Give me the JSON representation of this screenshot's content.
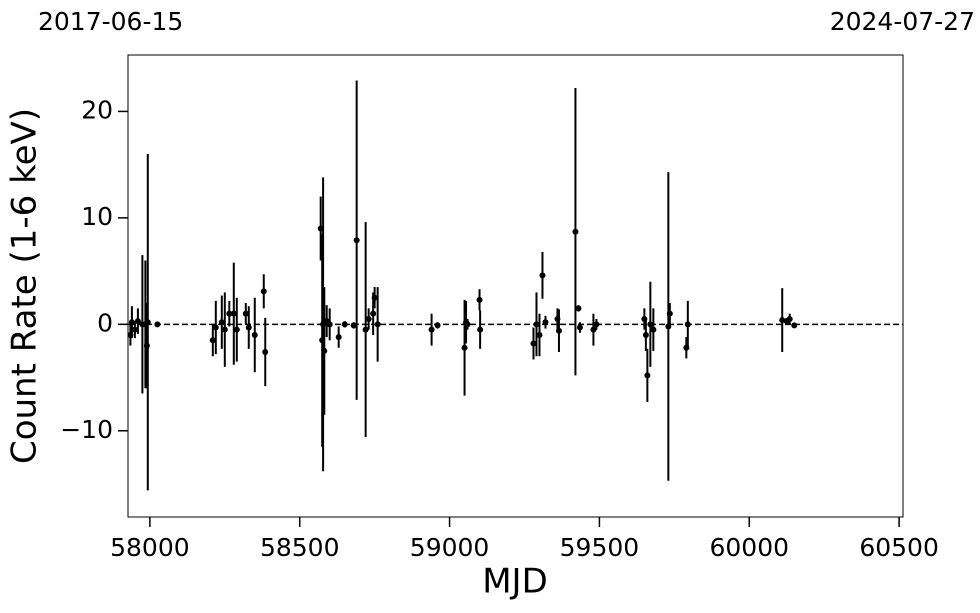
{
  "chart_data": {
    "type": "errorbar",
    "top_labels": [
      "2017-06-15",
      "2024-07-27"
    ],
    "x_label": "MJD",
    "y_label": "Count Rate (1-6 keV)",
    "xlim": [
      57927,
      60513
    ],
    "ylim": [
      -18.1,
      25.3
    ],
    "xticks": [
      58000,
      58500,
      59000,
      59500,
      60000,
      60500
    ],
    "yticks": [
      {
        "value": -10,
        "label": "−10"
      },
      0,
      10,
      20
    ],
    "hline": 0,
    "color": "#000000",
    "x": [
      57935,
      57940,
      57950,
      57960,
      57975,
      57985,
      57990,
      57993,
      58025,
      58210,
      58220,
      58240,
      58250,
      58265,
      58280,
      58290,
      58320,
      58330,
      58350,
      58380,
      58385,
      58570,
      58575,
      58578,
      58582,
      58590,
      58600,
      58630,
      58650,
      58680,
      58690,
      58720,
      58730,
      58745,
      58750,
      58760,
      58940,
      58960,
      59050,
      59055,
      59060,
      59100,
      59102,
      59280,
      59290,
      59300,
      59310,
      59320,
      59360,
      59365,
      59420,
      59430,
      59435,
      59480,
      59490,
      59650,
      59655,
      59660,
      59670,
      59680,
      59730,
      59735,
      59790,
      59795,
      60110,
      60125,
      60135,
      60150
    ],
    "values": [
      -1.0,
      0.2,
      -0.5,
      0.3,
      0.0,
      0.0,
      -2.0,
      0.2,
      0.0,
      -1.5,
      -0.3,
      0.2,
      -0.5,
      1.0,
      1.0,
      -0.5,
      1.0,
      -0.3,
      -1.0,
      3.1,
      -2.6,
      9.0,
      -1.5,
      0.0,
      -2.5,
      0.3,
      0.0,
      -1.2,
      0.0,
      -0.1,
      7.9,
      -0.5,
      0.5,
      1.0,
      2.5,
      0.0,
      -0.5,
      -0.1,
      -2.2,
      0.2,
      0.0,
      2.3,
      -0.5,
      -1.8,
      0.0,
      -1.0,
      4.6,
      0.2,
      0.5,
      -0.6,
      8.7,
      1.5,
      -0.3,
      -0.5,
      0.0,
      0.5,
      -1.0,
      -4.8,
      0.0,
      -0.5,
      -0.2,
      1.0,
      -2.2,
      0.0,
      0.4,
      0.3,
      0.5,
      -0.1
    ],
    "errors": [
      1.0,
      1.5,
      0.8,
      1.2,
      6.5,
      6.0,
      4.0,
      15.8,
      0.2,
      1.5,
      2.5,
      2.5,
      3.5,
      1.2,
      4.8,
      3.0,
      1.0,
      2.0,
      3.5,
      1.6,
      3.2,
      3.0,
      10.0,
      13.8,
      6.0,
      1.5,
      1.5,
      1.0,
      0.3,
      0.3,
      15.0,
      10.1,
      1.0,
      2.0,
      1.0,
      3.5,
      1.5,
      0.3,
      4.5,
      2.0,
      0.5,
      1.0,
      1.8,
      1.5,
      3.0,
      2.0,
      2.2,
      0.6,
      1.0,
      2.0,
      13.5,
      0.3,
      0.5,
      1.5,
      0.5,
      1.0,
      1.5,
      2.5,
      4.0,
      2.0,
      14.5,
      1.0,
      1.0,
      2.2,
      3.0,
      0.3,
      0.5,
      0.2
    ]
  }
}
